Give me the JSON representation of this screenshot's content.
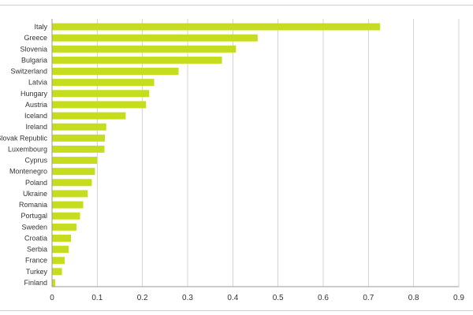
{
  "chart_data": {
    "type": "bar",
    "orientation": "horizontal",
    "categories": [
      "Italy",
      "Greece",
      "Slovenia",
      "Bulgaria",
      "Switzerland",
      "Latvia",
      "Hungary",
      "Austria",
      "Iceland",
      "Ireland",
      "Slovak Republic",
      "Luxembourg",
      "Cyprus",
      "Montenegro",
      "Poland",
      "Ukraine",
      "Romania",
      "Portugal",
      "Sweden",
      "Croatia",
      "Serbia",
      "France",
      "Turkey",
      "Finland"
    ],
    "values": [
      0.726,
      0.455,
      0.407,
      0.376,
      0.28,
      0.226,
      0.215,
      0.208,
      0.163,
      0.12,
      0.117,
      0.116,
      0.1,
      0.095,
      0.088,
      0.079,
      0.069,
      0.062,
      0.054,
      0.042,
      0.037,
      0.028,
      0.022,
      0.007
    ],
    "xlim": [
      0,
      0.9
    ],
    "xticks": [
      "0",
      "0.1",
      "0.2",
      "0.3",
      "0.4",
      "0.5",
      "0.6",
      "0.7",
      "0.8",
      "0.9"
    ],
    "title": "",
    "xlabel": "",
    "ylabel": "",
    "grid": "vertical",
    "bar_color": "#c6dd1f"
  }
}
